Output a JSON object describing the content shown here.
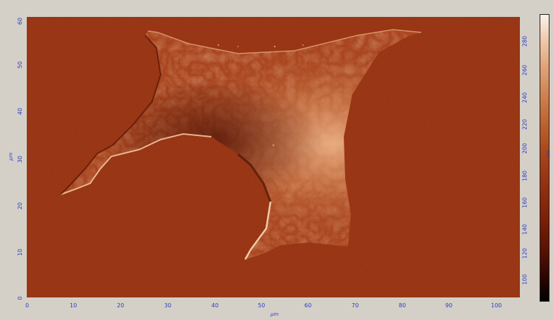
{
  "x_axis": {
    "ticks": [
      "0",
      "10",
      "20",
      "30",
      "40",
      "50",
      "60",
      "70",
      "80",
      "90",
      "100"
    ],
    "unit": "μm"
  },
  "y_axis": {
    "ticks": [
      "0",
      "10",
      "20",
      "30",
      "40",
      "50",
      "60"
    ],
    "unit": "μm"
  },
  "colorbar": {
    "ticks": [
      "100",
      "120",
      "140",
      "160",
      "180",
      "200",
      "220",
      "240",
      "260",
      "280"
    ],
    "unit": "nV"
  },
  "colors": {
    "background": "#8f2a0c",
    "cell_body": "#a5401a",
    "highlight": "#f0b487",
    "axis_text": "#2f3bbf",
    "panel": "#d4d0c8"
  }
}
